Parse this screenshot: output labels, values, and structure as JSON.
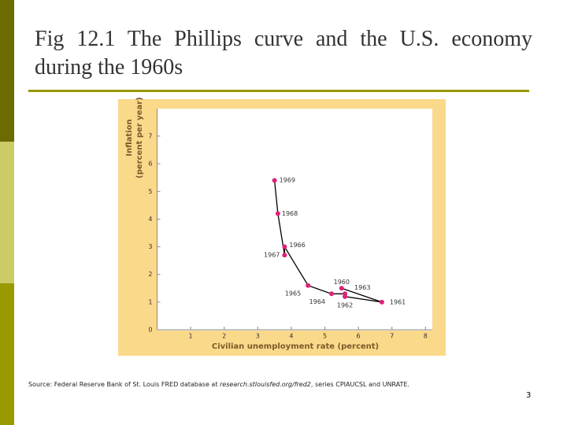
{
  "title": "Fig 12.1  The Phillips curve and the U.S. economy during the 1960s",
  "chart_data": {
    "type": "scatter",
    "xlabel": "Civilian unemployment rate (percent)",
    "ylabel": [
      "Inflation",
      "(percent per year)"
    ],
    "point_labels": [
      "1960",
      "1961",
      "1962",
      "1963",
      "1964",
      "1965",
      "1966",
      "1967",
      "1968",
      "1969"
    ],
    "x": [
      5.5,
      6.7,
      5.6,
      5.6,
      5.2,
      4.5,
      3.8,
      3.8,
      3.6,
      3.5
    ],
    "values": [
      1.5,
      1.0,
      1.2,
      1.3,
      1.3,
      1.6,
      3.0,
      2.7,
      4.2,
      5.4
    ],
    "color": "#e0207a",
    "line_color": "#000000",
    "connected": true,
    "xlim": [
      0,
      8.2
    ],
    "xticks": [
      1,
      2,
      3,
      4,
      5,
      6,
      7,
      8
    ],
    "ylim": [
      0,
      8
    ],
    "yticks": [
      0,
      1,
      2,
      3,
      4,
      5,
      6,
      7
    ]
  },
  "source": {
    "prefix": "Source: Federal Reserve Bank of St. Louis FRED database at ",
    "url": "research.stlouisfed.org/fred2",
    "suffix": ", series CPIAUCSL and UNRATE."
  },
  "page_number": "3"
}
